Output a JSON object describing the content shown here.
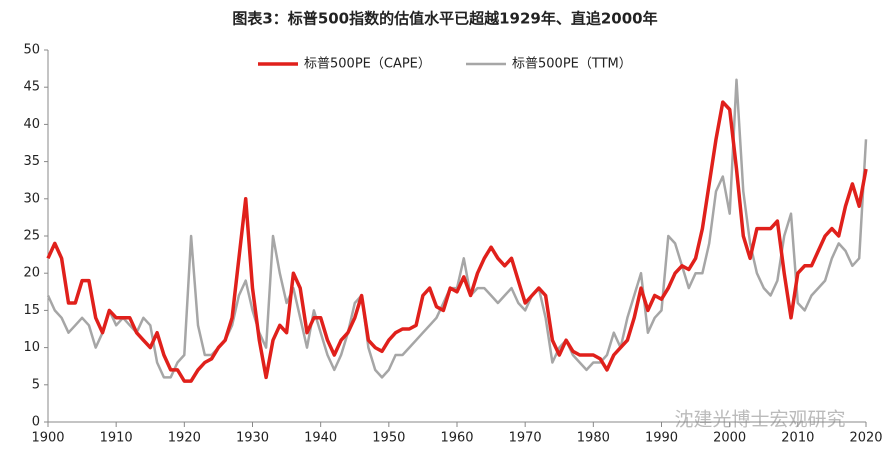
{
  "chart_data": {
    "type": "line",
    "title": "图表3：标普500指数的估值水平已超越1929年、直追2000年",
    "watermark": "沈建光博士宏观研究",
    "x": [
      1900,
      1901,
      1902,
      1903,
      1904,
      1905,
      1906,
      1907,
      1908,
      1909,
      1910,
      1911,
      1912,
      1913,
      1914,
      1915,
      1916,
      1917,
      1918,
      1919,
      1920,
      1921,
      1922,
      1923,
      1924,
      1925,
      1926,
      1927,
      1928,
      1929,
      1930,
      1931,
      1932,
      1933,
      1934,
      1935,
      1936,
      1937,
      1938,
      1939,
      1940,
      1941,
      1942,
      1943,
      1944,
      1945,
      1946,
      1947,
      1948,
      1949,
      1950,
      1951,
      1952,
      1953,
      1954,
      1955,
      1956,
      1957,
      1958,
      1959,
      1960,
      1961,
      1962,
      1963,
      1964,
      1965,
      1966,
      1967,
      1968,
      1969,
      1970,
      1971,
      1972,
      1973,
      1974,
      1975,
      1976,
      1977,
      1978,
      1979,
      1980,
      1981,
      1982,
      1983,
      1984,
      1985,
      1986,
      1987,
      1988,
      1989,
      1990,
      1991,
      1992,
      1993,
      1994,
      1995,
      1996,
      1997,
      1998,
      1999,
      2000,
      2001,
      2002,
      2003,
      2004,
      2005,
      2006,
      2007,
      2008,
      2009,
      2010,
      2011,
      2012,
      2013,
      2014,
      2015,
      2016,
      2017,
      2018,
      2019,
      2020
    ],
    "series": [
      {
        "name": "标普500PE（CAPE）",
        "color": "#e0201b",
        "width": 3.5,
        "values": [
          22,
          24,
          22,
          16,
          16,
          19,
          19,
          14,
          12,
          15,
          14,
          14,
          14,
          12,
          11,
          10,
          12,
          9,
          7,
          7,
          5.5,
          5.5,
          7,
          8,
          8.5,
          10,
          11,
          14,
          22,
          30,
          18,
          11,
          6,
          11,
          13,
          12,
          20,
          18,
          12,
          14,
          14,
          11,
          9,
          11,
          12,
          14,
          17,
          11,
          10,
          9.5,
          11,
          12,
          12.5,
          12.5,
          13,
          17,
          18,
          15.5,
          15,
          18,
          17.5,
          19.5,
          17,
          20,
          22,
          23.5,
          22,
          21,
          22,
          19,
          16,
          17,
          18,
          17,
          11,
          9,
          11,
          9.5,
          9,
          9,
          9,
          8.5,
          7,
          9,
          10,
          11,
          14,
          18,
          15,
          17,
          16.5,
          18,
          20,
          21,
          20.5,
          22,
          26,
          32,
          38,
          43,
          42,
          34,
          25,
          22,
          26,
          26,
          26,
          27,
          20,
          14,
          20,
          21,
          21,
          23,
          25,
          26,
          25,
          29,
          32,
          29,
          34
        ]
      },
      {
        "name": "标普500PE（TTM）",
        "color": "#a6a6a6",
        "width": 2.5,
        "values": [
          17,
          15,
          14,
          12,
          13,
          14,
          13,
          10,
          12,
          15,
          13,
          14,
          13,
          12,
          14,
          13,
          8,
          6,
          6,
          8,
          9,
          25,
          13,
          9,
          9,
          10,
          11,
          13,
          17,
          19,
          15,
          12,
          10,
          25,
          20,
          16,
          18,
          14,
          10,
          15,
          12,
          9,
          7,
          9,
          12,
          16,
          17,
          10,
          7,
          6,
          7,
          9,
          9,
          10,
          11,
          12,
          13,
          14,
          16,
          18,
          18,
          22,
          17,
          18,
          18,
          17,
          16,
          17,
          18,
          16,
          15,
          17,
          18,
          14,
          8,
          10,
          11,
          9,
          8,
          7,
          8,
          8,
          9,
          12,
          10,
          14,
          17,
          20,
          12,
          14,
          15,
          25,
          24,
          21,
          18,
          20,
          20,
          24,
          31,
          33,
          28,
          46,
          31,
          24,
          20,
          18,
          17,
          19,
          25,
          28,
          16,
          15,
          17,
          18,
          19,
          22,
          24,
          23,
          21,
          22,
          38
        ]
      }
    ],
    "xlim": [
      1900,
      2020
    ],
    "xticks": [
      1900,
      1910,
      1920,
      1930,
      1940,
      1950,
      1960,
      1970,
      1980,
      1990,
      2000,
      2010,
      2020
    ],
    "ylim": [
      0,
      50
    ],
    "yticks": [
      0,
      5,
      10,
      15,
      20,
      25,
      30,
      35,
      40,
      45,
      50
    ]
  }
}
